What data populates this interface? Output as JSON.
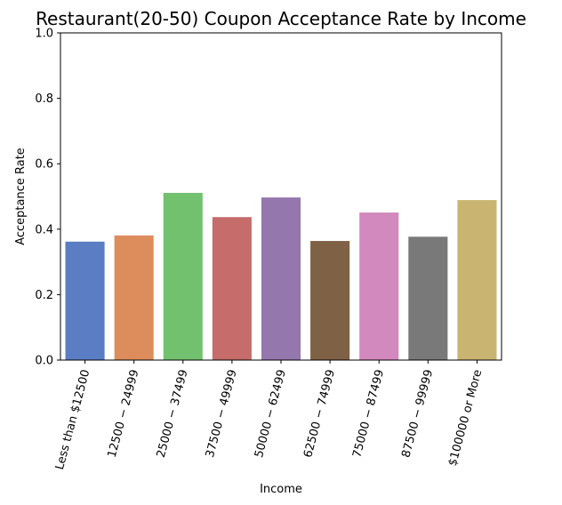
{
  "chart_data": {
    "type": "bar",
    "title": "Restaurant(20-50) Coupon Acceptance Rate by Income",
    "xlabel": "Income",
    "ylabel": "Acceptance Rate",
    "ylim": [
      0,
      1.0
    ],
    "yticks": [
      "0.0",
      "0.2",
      "0.4",
      "0.6",
      "0.8",
      "1.0"
    ],
    "ytick_values": [
      0,
      0.2,
      0.4,
      0.6,
      0.8,
      1.0
    ],
    "grid": false,
    "categories": [
      "Less than $12500",
      "$12500 - $24999",
      "$25000 - $37499",
      "$37500 - $49999",
      "$50000 - $62499",
      "$62500 - $74999",
      "$75000 - $87499",
      "$87500 - $99999",
      "$100000 or More"
    ],
    "tick_labels_shown": [
      "Less than $12500",
      "12500 − 24999",
      "25000 − 37499",
      "37500 − 49999",
      "50000 − 62499",
      "62500 − 74999",
      "75000 − 87499",
      "87500 − 99999",
      "$100000 or More"
    ],
    "values": [
      0.362,
      0.381,
      0.511,
      0.437,
      0.497,
      0.364,
      0.451,
      0.377,
      0.489
    ],
    "colors": [
      "#5a7dc3",
      "#dd8c5c",
      "#72c16f",
      "#c66c6a",
      "#9477ad",
      "#7f6146",
      "#d289bd",
      "#797979",
      "#c9b471"
    ]
  }
}
